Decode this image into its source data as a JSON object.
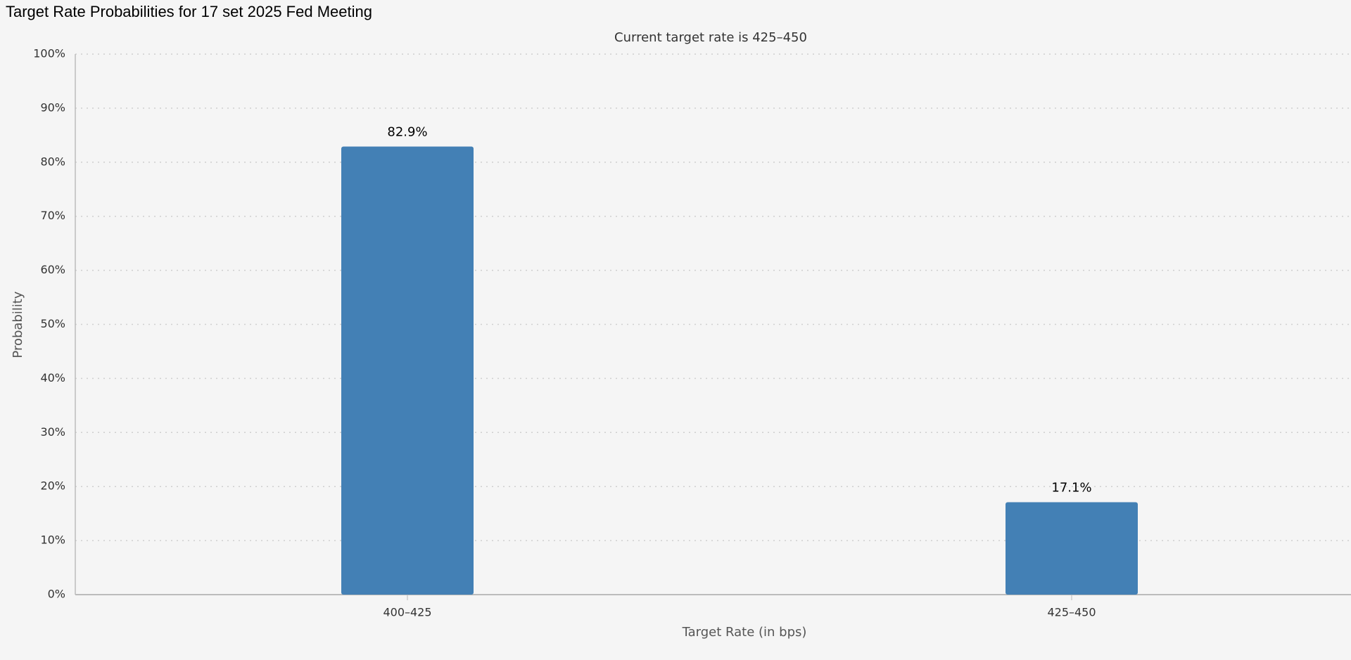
{
  "chart_data": {
    "type": "bar",
    "title": "Target Rate Probabilities for 17 set 2025 Fed Meeting",
    "subtitle": "Current target rate is 425–450",
    "x_label": "Target Rate (in bps)",
    "y_label": "Probability",
    "categories": [
      "400–425",
      "425–450"
    ],
    "values": [
      82.9,
      17.1
    ],
    "value_labels": [
      "82.9%",
      "17.1%"
    ],
    "color": "#4380b5",
    "ylim": [
      0,
      100
    ],
    "yticks": [
      {
        "value": 0,
        "label": "0%"
      },
      {
        "value": 10,
        "label": "10%"
      },
      {
        "value": 20,
        "label": "20%"
      },
      {
        "value": 30,
        "label": "30%"
      },
      {
        "value": 40,
        "label": "40%"
      },
      {
        "value": 50,
        "label": "50%"
      },
      {
        "value": 60,
        "label": "60%"
      },
      {
        "value": 70,
        "label": "70%"
      },
      {
        "value": 80,
        "label": "80%"
      },
      {
        "value": 90,
        "label": "90%"
      },
      {
        "value": 100,
        "label": "100%"
      }
    ],
    "grid": true
  }
}
